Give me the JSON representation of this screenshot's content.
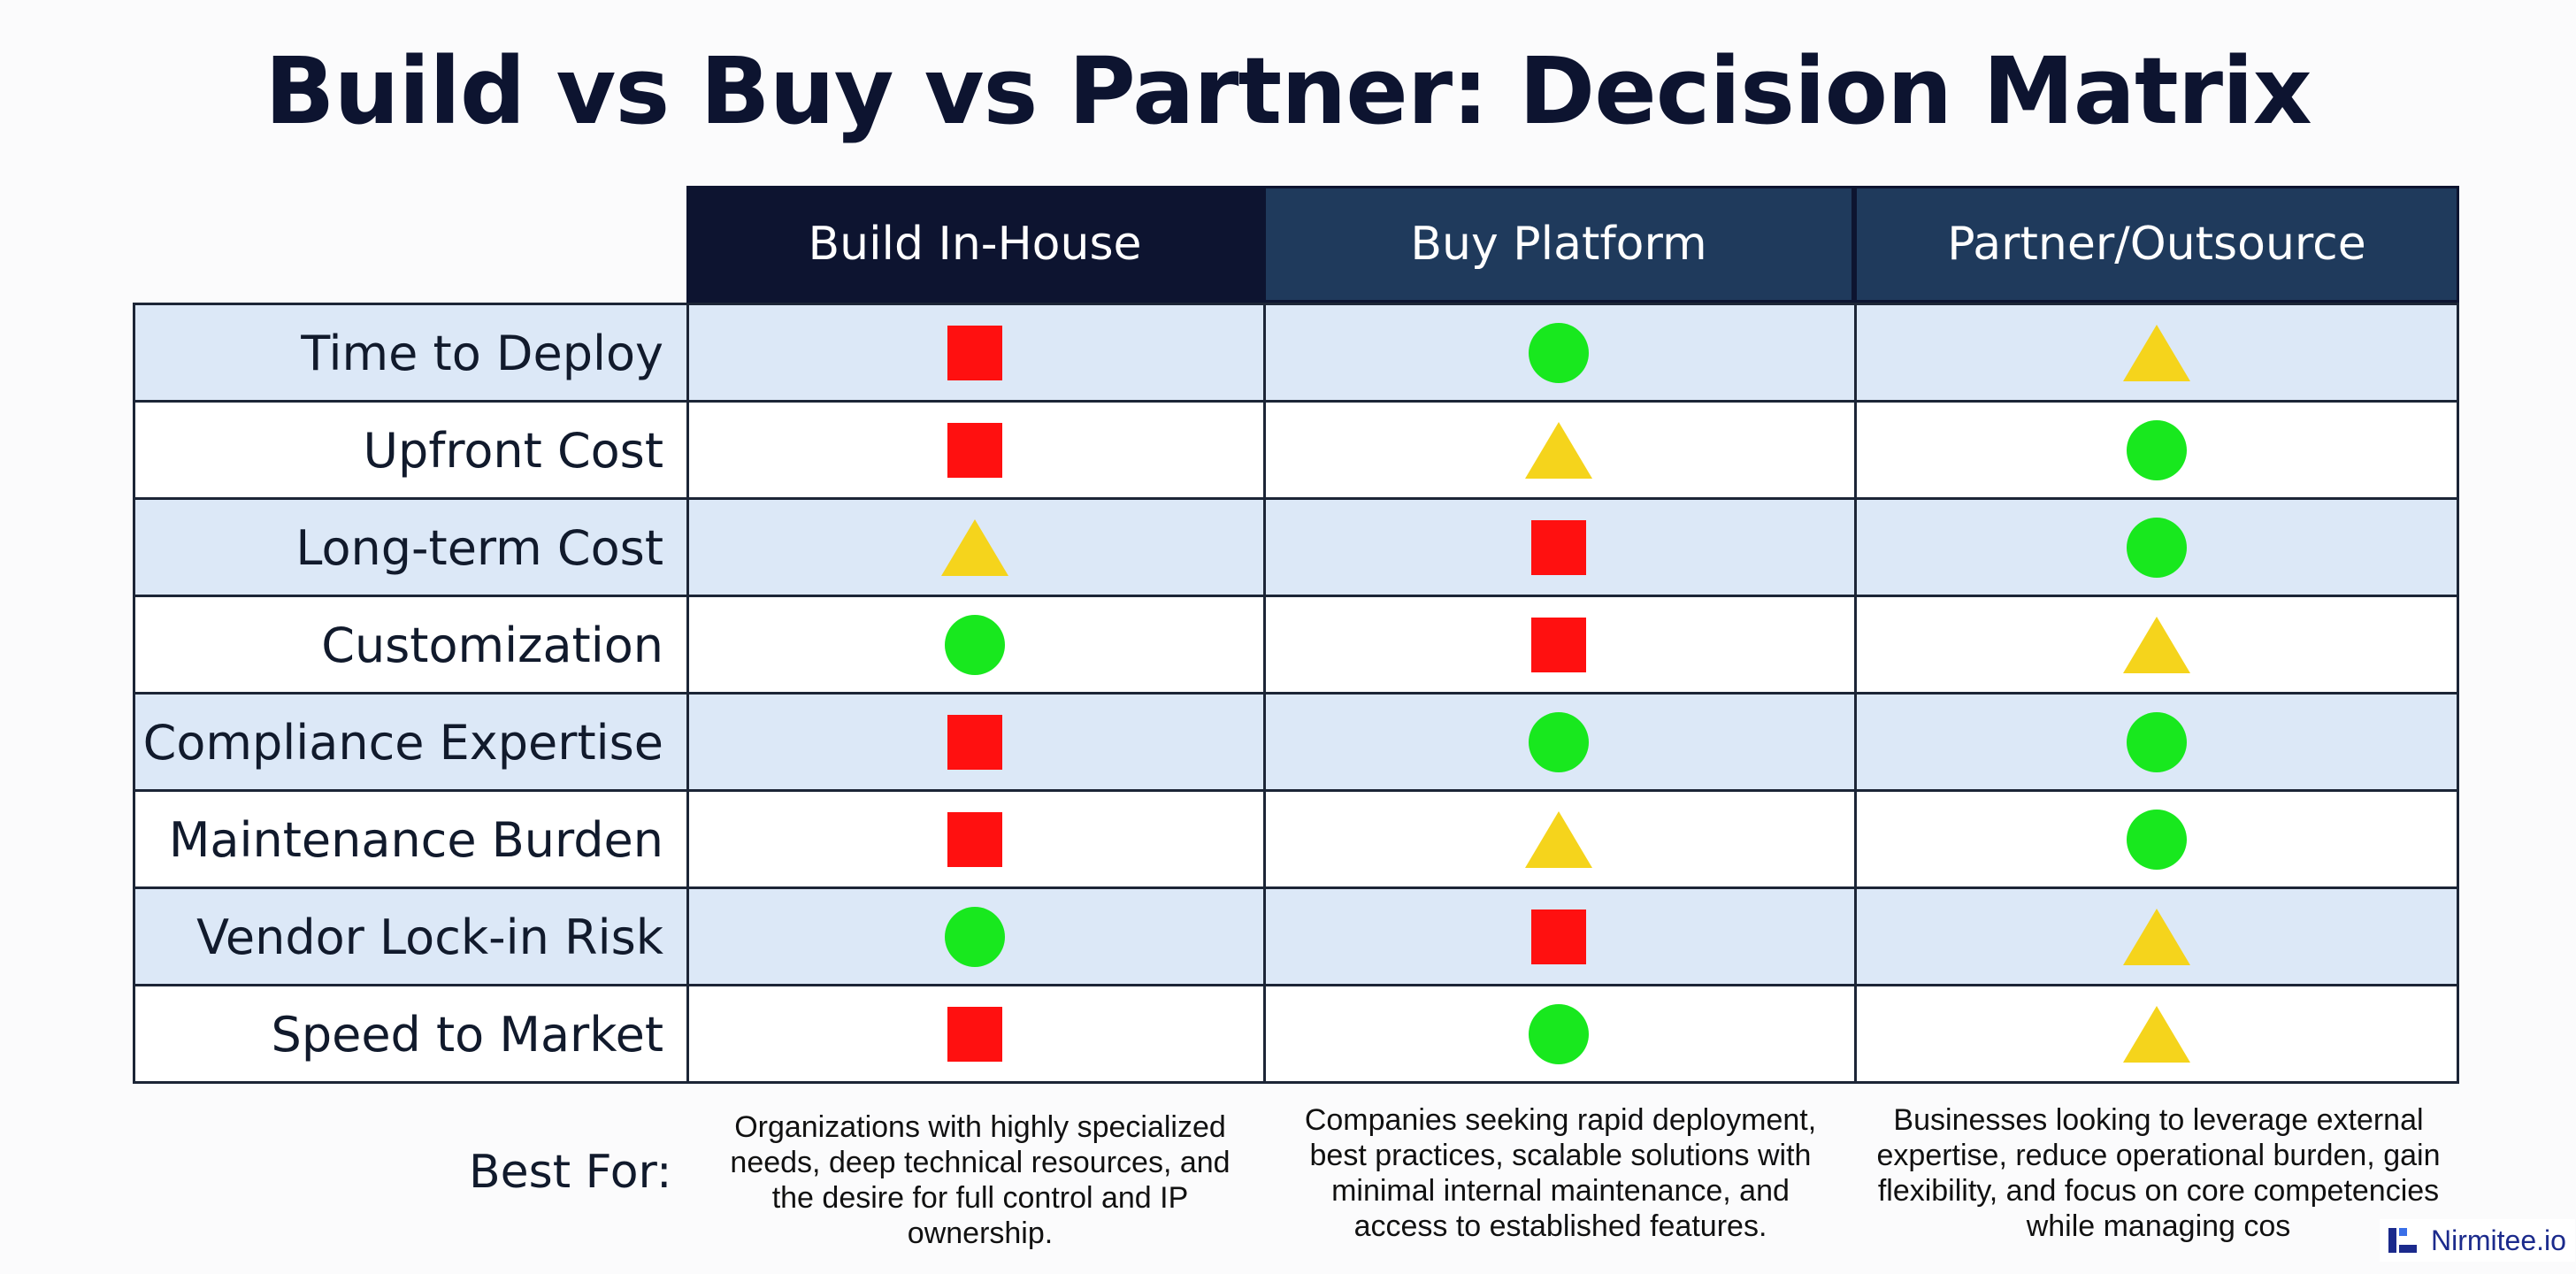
{
  "title": "Build vs Buy vs Partner: Decision Matrix",
  "columns": [
    "Build In-House",
    "Buy Platform",
    "Partner/Outsource"
  ],
  "column_colors": [
    "#0d1430",
    "#1f3a5c",
    "#1f3a5c"
  ],
  "criteria": [
    "Time to Deploy",
    "Upfront Cost",
    "Long-term Cost",
    "Customization",
    "Compliance Expertise",
    "Maintenance Burden",
    "Vendor Lock-in Risk",
    "Speed to Market"
  ],
  "ratings": [
    [
      "square",
      "circle",
      "triangle"
    ],
    [
      "square",
      "triangle",
      "circle"
    ],
    [
      "triangle",
      "square",
      "circle"
    ],
    [
      "circle",
      "square",
      "triangle"
    ],
    [
      "square",
      "circle",
      "circle"
    ],
    [
      "square",
      "triangle",
      "circle"
    ],
    [
      "circle",
      "square",
      "triangle"
    ],
    [
      "square",
      "circle",
      "triangle"
    ]
  ],
  "symbol_colors": {
    "square": "#ff1010",
    "circle": "#18e81e",
    "triangle": "#f5d41c"
  },
  "best_for": {
    "label": "Best For:",
    "build": "Organizations with highly specialized needs, deep technical resources, and the desire for full control and IP ownership.",
    "buy": "Companies seeking rapid deployment, best practices, scalable solutions with minimal internal maintenance, and access to established features.",
    "partner": "Businesses looking to leverage external expertise, reduce operational burden, gain flexibility, and focus on core competencies while managing cos"
  },
  "logo": {
    "text": "Nirmitee.io",
    "icon": "nirmitee-logo-icon"
  }
}
